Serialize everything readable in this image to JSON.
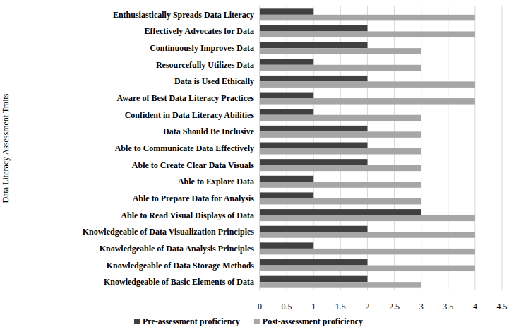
{
  "chart_data": {
    "type": "bar",
    "orientation": "horizontal",
    "grid": true,
    "legend": "bottom",
    "y_label": "Data Literacy Assessment Traits",
    "categories": [
      "Enthusiastically Spreads Data Literacy",
      "Effectively Advocates for Data",
      "Continuously Improves Data",
      "Resourcefully Utilizes Data",
      "Data is Used Ethically",
      "Aware of Best Data Literacy Practices",
      "Confident in Data Literacy Abilities",
      "Data Should Be Inclusive",
      "Able to Communicate Data Effectively",
      "Able to Create Clear Data Visuals",
      "Able to Explore Data",
      "Able to Prepare Data for Analysis",
      "Able to Read Visual Displays of Data",
      "Knowledgeable of Data Visualization Principles",
      "Knowledgeable of Data Analysis Principles",
      "Knowledgeable of Data Storage Methods",
      "Knowledgeable of Basic Elements of Data"
    ],
    "series": [
      {
        "name": "Pre-assessment proficiency",
        "color": "#404040",
        "values": [
          1,
          2,
          2,
          1,
          2,
          1,
          1,
          2,
          2,
          2,
          1,
          1,
          3,
          2,
          1,
          2,
          2
        ]
      },
      {
        "name": "Post-assessment proficiency",
        "color": "#a6a6a6",
        "values": [
          4,
          4,
          3,
          3,
          4,
          4,
          3,
          3,
          3,
          3,
          3,
          3,
          4,
          4,
          4,
          4,
          3
        ]
      }
    ],
    "xlim": [
      0,
      4.5
    ],
    "xticks": [
      0,
      0.5,
      1,
      1.5,
      2,
      2.5,
      3,
      3.5,
      4,
      4.5
    ]
  }
}
